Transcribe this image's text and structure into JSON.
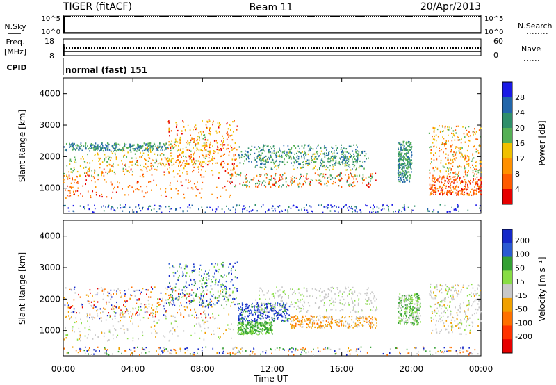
{
  "header": {
    "title": "TIGER (fitACF)",
    "beam": "Beam 11",
    "date": "20/Apr/2013"
  },
  "panels": {
    "nsky": {
      "label": "N.Sky",
      "ticks": [
        "10^5",
        "10^0"
      ],
      "right_label": "N.Search",
      "right_ticks": [
        "10^5",
        "10^0"
      ]
    },
    "freq": {
      "label_top": "Freq.",
      "label_unit": "[MHz]",
      "ticks": [
        "18",
        "8"
      ],
      "right_label": "Nave",
      "right_ticks": [
        "60",
        "0"
      ]
    },
    "cpid": {
      "label": "CPID",
      "text": "normal (fast) 151"
    }
  },
  "chart_data": [
    {
      "type": "heatmap",
      "name": "power",
      "ylabel": "Slant Range [km]",
      "ylim": [
        200,
        4500
      ],
      "yticks": [
        "1000",
        "2000",
        "3000",
        "4000"
      ],
      "colorbar": {
        "label": "Power [dB]",
        "levels": [
          "4",
          "8",
          "12",
          "16",
          "20",
          "24",
          "28"
        ],
        "colors": [
          "#1a1ae6",
          "#2266aa",
          "#2f8f6a",
          "#55b055",
          "#f0c000",
          "#ff9000",
          "#ff5a00",
          "#e60000"
        ]
      }
    },
    {
      "type": "heatmap",
      "name": "velocity",
      "ylabel": "Slant Range [km]",
      "ylim": [
        200,
        4500
      ],
      "yticks": [
        "1000",
        "2000",
        "3000",
        "4000"
      ],
      "colorbar": {
        "label": "Velocity [m s⁻¹]",
        "levels": [
          "200",
          "100",
          "50",
          "15",
          "-15",
          "-50",
          "-100",
          "-200"
        ],
        "colors": [
          "#1428c8",
          "#2a5ad2",
          "#33a033",
          "#88dd44",
          "#c8c8c8",
          "#f0a000",
          "#ff7000",
          "#ff3300",
          "#e60000"
        ]
      }
    }
  ],
  "xaxis": {
    "label": "Time UT",
    "ticks": [
      "00:00",
      "04:00",
      "08:00",
      "12:00",
      "16:00",
      "20:00",
      "00:00"
    ]
  }
}
